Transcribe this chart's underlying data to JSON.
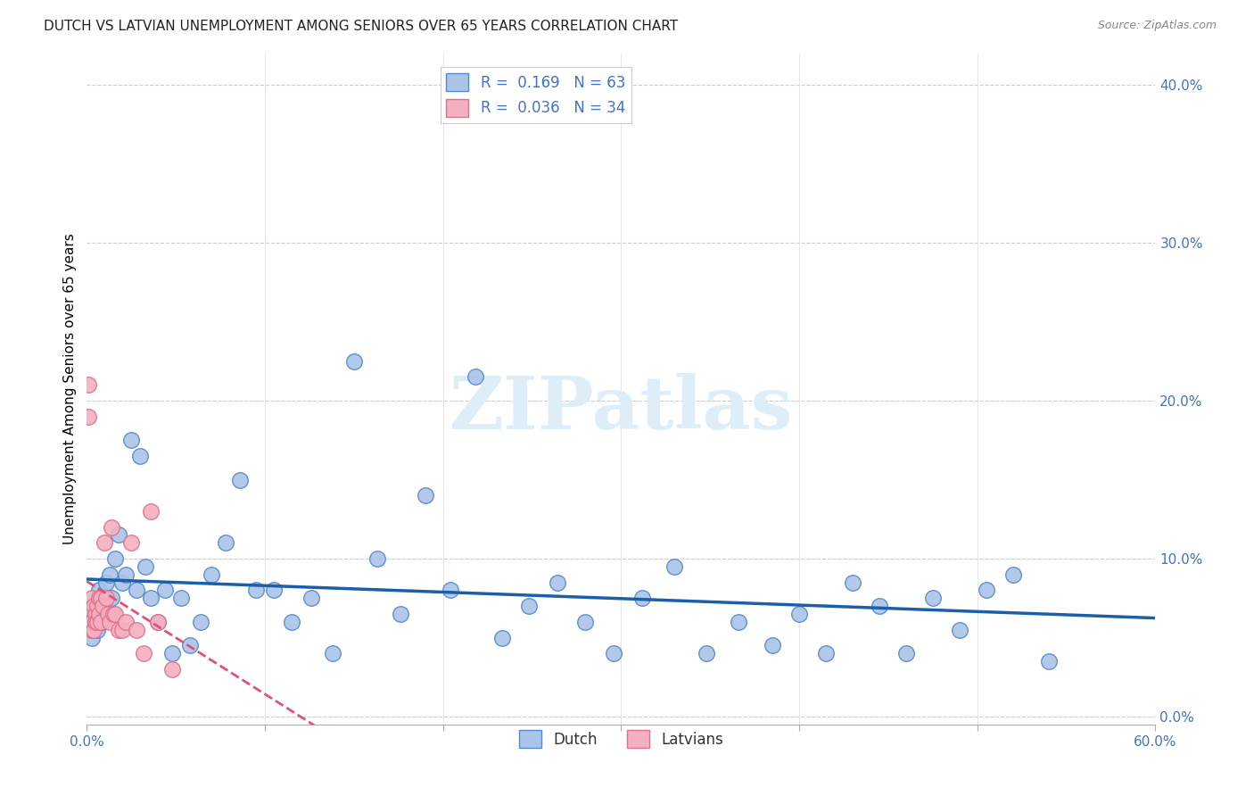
{
  "title": "DUTCH VS LATVIAN UNEMPLOYMENT AMONG SENIORS OVER 65 YEARS CORRELATION CHART",
  "source": "Source: ZipAtlas.com",
  "ylabel": "Unemployment Among Seniors over 65 years",
  "xlim": [
    0,
    0.6
  ],
  "ylim": [
    -0.005,
    0.42
  ],
  "xtick_vals": [
    0.0,
    0.1,
    0.2,
    0.3,
    0.4,
    0.5,
    0.6
  ],
  "yticks_right": [
    0.0,
    0.1,
    0.2,
    0.3,
    0.4
  ],
  "yticklabels_right": [
    "0.0%",
    "10.0%",
    "20.0%",
    "30.0%",
    "40.0%"
  ],
  "dutch_R": 0.169,
  "dutch_N": 63,
  "latvian_R": 0.036,
  "latvian_N": 34,
  "dutch_color": "#aac4e8",
  "dutch_edge_color": "#5588cc",
  "dutch_line_color": "#1a5fa8",
  "latvian_color": "#f4b0c0",
  "latvian_edge_color": "#e0708a",
  "latvian_line_color": "#e0507a",
  "watermark_text": "ZIPatlas",
  "watermark_color": "#ddeef8",
  "background_color": "#ffffff",
  "dutch_x": [
    0.001,
    0.002,
    0.003,
    0.004,
    0.005,
    0.006,
    0.007,
    0.008,
    0.009,
    0.01,
    0.011,
    0.012,
    0.013,
    0.014,
    0.016,
    0.018,
    0.02,
    0.022,
    0.025,
    0.028,
    0.03,
    0.033,
    0.036,
    0.04,
    0.044,
    0.048,
    0.053,
    0.058,
    0.064,
    0.07,
    0.078,
    0.086,
    0.095,
    0.105,
    0.115,
    0.126,
    0.138,
    0.15,
    0.163,
    0.176,
    0.19,
    0.204,
    0.218,
    0.233,
    0.248,
    0.264,
    0.28,
    0.296,
    0.312,
    0.33,
    0.348,
    0.366,
    0.385,
    0.4,
    0.415,
    0.43,
    0.445,
    0.46,
    0.475,
    0.49,
    0.505,
    0.52,
    0.54
  ],
  "dutch_y": [
    0.055,
    0.06,
    0.05,
    0.07,
    0.065,
    0.055,
    0.08,
    0.075,
    0.06,
    0.07,
    0.085,
    0.065,
    0.09,
    0.075,
    0.1,
    0.115,
    0.085,
    0.09,
    0.175,
    0.08,
    0.165,
    0.095,
    0.075,
    0.06,
    0.08,
    0.04,
    0.075,
    0.045,
    0.06,
    0.09,
    0.11,
    0.15,
    0.08,
    0.08,
    0.06,
    0.075,
    0.04,
    0.225,
    0.1,
    0.065,
    0.14,
    0.08,
    0.215,
    0.05,
    0.07,
    0.085,
    0.06,
    0.04,
    0.075,
    0.095,
    0.04,
    0.06,
    0.045,
    0.065,
    0.04,
    0.085,
    0.07,
    0.04,
    0.075,
    0.055,
    0.08,
    0.09,
    0.035
  ],
  "latvian_x": [
    0.001,
    0.001,
    0.002,
    0.002,
    0.003,
    0.003,
    0.003,
    0.004,
    0.004,
    0.005,
    0.005,
    0.006,
    0.006,
    0.007,
    0.007,
    0.008,
    0.008,
    0.009,
    0.01,
    0.011,
    0.012,
    0.013,
    0.014,
    0.015,
    0.016,
    0.018,
    0.02,
    0.022,
    0.025,
    0.028,
    0.032,
    0.036,
    0.04,
    0.048
  ],
  "latvian_y": [
    0.21,
    0.19,
    0.065,
    0.06,
    0.075,
    0.055,
    0.06,
    0.07,
    0.055,
    0.065,
    0.06,
    0.07,
    0.06,
    0.075,
    0.065,
    0.06,
    0.075,
    0.07,
    0.11,
    0.075,
    0.065,
    0.06,
    0.12,
    0.065,
    0.065,
    0.055,
    0.055,
    0.06,
    0.11,
    0.055,
    0.04,
    0.13,
    0.06,
    0.03
  ]
}
